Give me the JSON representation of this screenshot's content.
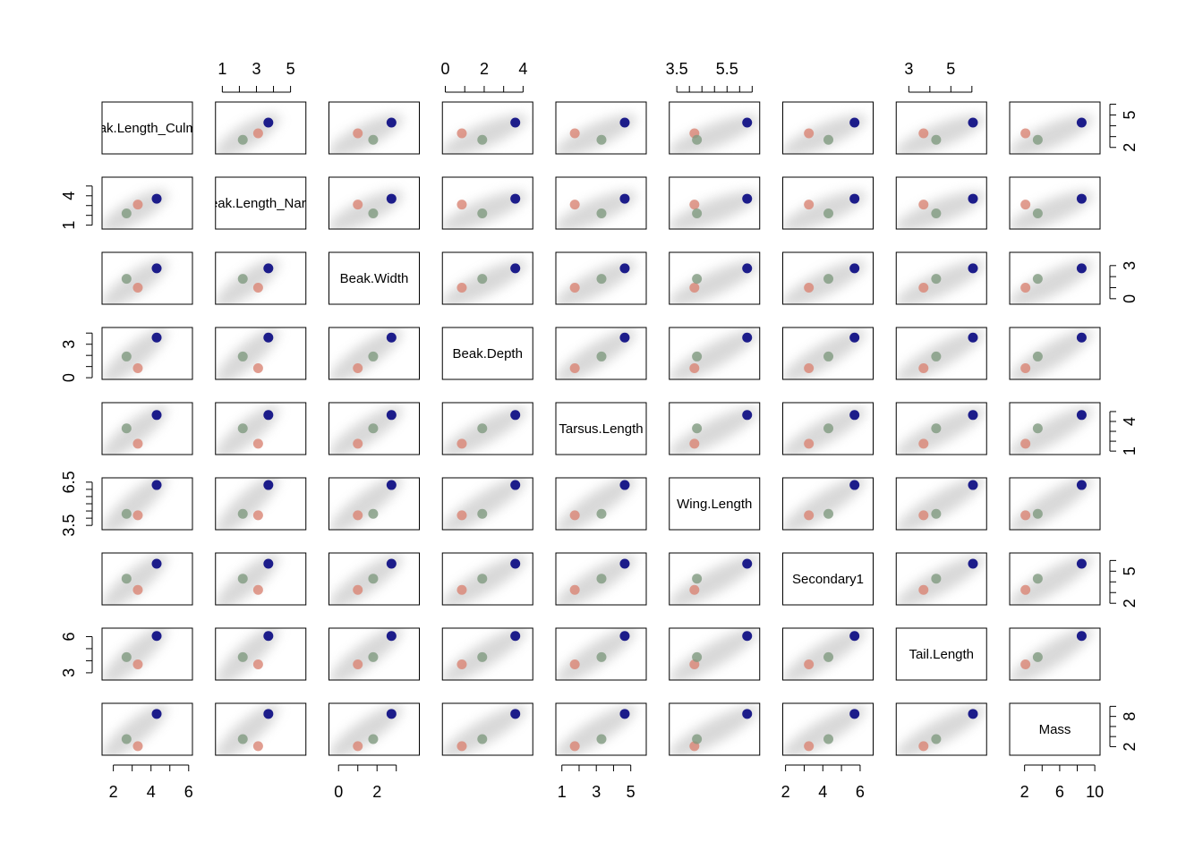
{
  "chart_data": {
    "type": "scatter-matrix",
    "variables": [
      {
        "name": "Beak.Length_Culmen",
        "lim": [
          1.4,
          6.2
        ],
        "ticks": [
          2,
          3,
          4,
          5,
          6
        ],
        "x_labels": [
          2,
          4,
          6
        ],
        "y_labels": [
          2,
          5
        ]
      },
      {
        "name": "Beak.Length_Nares",
        "lim": [
          0.6,
          5.9
        ],
        "ticks": [
          1,
          2,
          3,
          4,
          5
        ],
        "x_labels": [
          1,
          3,
          5
        ],
        "y_labels": [
          1,
          4
        ]
      },
      {
        "name": "Beak.Width",
        "lim": [
          -0.5,
          4.2
        ],
        "ticks": [
          0,
          1,
          2,
          3
        ],
        "x_labels": [
          0,
          2
        ],
        "y_labels": [
          0,
          3
        ]
      },
      {
        "name": "Beak.Depth",
        "lim": [
          -0.15,
          4.5
        ],
        "ticks": [
          0,
          1,
          2,
          3,
          4
        ],
        "x_labels": [
          0,
          2,
          4
        ],
        "y_labels": [
          0,
          3
        ]
      },
      {
        "name": "Tarsus.Length",
        "lim": [
          0.65,
          5.9
        ],
        "ticks": [
          1,
          2,
          3,
          4,
          5
        ],
        "x_labels": [
          1,
          3,
          5
        ],
        "y_labels": [
          1,
          4
        ]
      },
      {
        "name": "Wing.Length",
        "lim": [
          3.2,
          6.8
        ],
        "ticks": [
          3.5,
          4,
          4.5,
          5,
          5.5,
          6,
          6.5
        ],
        "x_labels": [
          3.5,
          5.5
        ],
        "y_labels": [
          3.5,
          6.5
        ]
      },
      {
        "name": "Secondary1",
        "lim": [
          1.85,
          6.7
        ],
        "ticks": [
          2,
          3,
          4,
          5,
          6
        ],
        "x_labels": [
          2,
          4,
          6
        ],
        "y_labels": [
          2,
          5
        ]
      },
      {
        "name": "Tail.Length",
        "lim": [
          2.4,
          6.7
        ],
        "ticks": [
          3,
          4,
          5,
          6
        ],
        "x_labels": [
          3,
          5
        ],
        "y_labels": [
          3,
          6
        ]
      },
      {
        "name": "Mass",
        "lim": [
          0.3,
          10.6
        ],
        "ticks": [
          2,
          4,
          6,
          8,
          10
        ],
        "x_labels": [
          2,
          6,
          10
        ],
        "y_labels": [
          2,
          8
        ]
      }
    ],
    "series": [
      {
        "color": "#d98474",
        "values": [
          3.3,
          3.1,
          1.0,
          0.85,
          1.75,
          4.2,
          3.25,
          3.7,
          2.1
        ]
      },
      {
        "color": "#7f9a80",
        "values": [
          2.7,
          2.2,
          1.8,
          1.9,
          3.3,
          4.3,
          4.3,
          4.3,
          3.5
        ]
      },
      {
        "color": "#1c1c8a",
        "values": [
          4.3,
          3.7,
          2.75,
          3.6,
          4.65,
          6.3,
          5.7,
          6.05,
          8.5
        ]
      }
    ]
  }
}
